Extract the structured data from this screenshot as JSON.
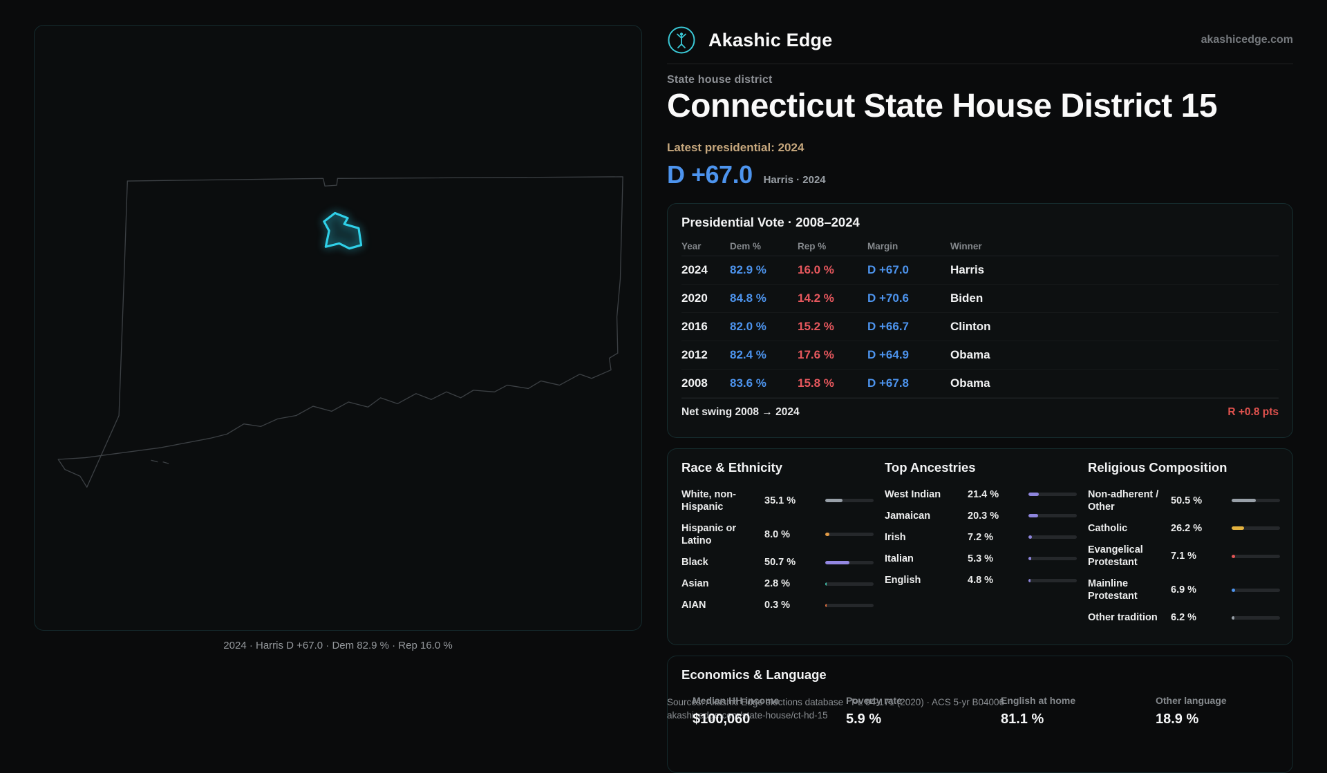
{
  "meta": {
    "brand": "Akashic Edge",
    "domain": "akashicedge.com"
  },
  "map": {
    "caption": "2024 · Harris D +67.0 · Dem 82.9 % · Rep 16.0 %",
    "district_color": "#2fd0e8"
  },
  "header": {
    "category": "State house district",
    "title": "Connecticut State House District 15",
    "latest_label": "Latest presidential: 2024",
    "headline_margin": "D +67.0",
    "headline_note": "Harris · 2024"
  },
  "presidential": {
    "title": "Presidential Vote · 2008–2024",
    "columns": [
      "Year",
      "Dem %",
      "Rep %",
      "Margin",
      "Winner"
    ],
    "rows": [
      {
        "year": "2024",
        "dem": "82.9 %",
        "rep": "16.0 %",
        "margin": "D +67.0",
        "winner": "Harris"
      },
      {
        "year": "2020",
        "dem": "84.8 %",
        "rep": "14.2 %",
        "margin": "D +70.6",
        "winner": "Biden"
      },
      {
        "year": "2016",
        "dem": "82.0 %",
        "rep": "15.2 %",
        "margin": "D +66.7",
        "winner": "Clinton"
      },
      {
        "year": "2012",
        "dem": "82.4 %",
        "rep": "17.6 %",
        "margin": "D +64.9",
        "winner": "Obama"
      },
      {
        "year": "2008",
        "dem": "83.6 %",
        "rep": "15.8 %",
        "margin": "D +67.8",
        "winner": "Obama"
      }
    ],
    "net_swing_label": "Net swing 2008 → 2024",
    "net_swing_value": "R +0.8 pts"
  },
  "demographics": {
    "race": {
      "title": "Race & Ethnicity",
      "rows": [
        {
          "label": "White, non-Hispanic",
          "value": "35.1 %",
          "pct": 35.1,
          "color": "#98a0a8"
        },
        {
          "label": "Hispanic or Latino",
          "value": "8.0 %",
          "pct": 8.0,
          "color": "#e29b45"
        },
        {
          "label": "Black",
          "value": "50.7 %",
          "pct": 50.7,
          "color": "#9387e2"
        },
        {
          "label": "Asian",
          "value": "2.8 %",
          "pct": 2.8,
          "color": "#41c4ae"
        },
        {
          "label": "AIAN",
          "value": "0.3 %",
          "pct": 0.3,
          "color": "#e2703f"
        }
      ]
    },
    "ancestries": {
      "title": "Top Ancestries",
      "rows": [
        {
          "label": "West Indian",
          "value": "21.4 %",
          "pct": 21.4,
          "color": "#8d85dd"
        },
        {
          "label": "Jamaican",
          "value": "20.3 %",
          "pct": 20.3,
          "color": "#8d85dd"
        },
        {
          "label": "Irish",
          "value": "7.2 %",
          "pct": 7.2,
          "color": "#8d85dd"
        },
        {
          "label": "Italian",
          "value": "5.3 %",
          "pct": 5.3,
          "color": "#8d85dd"
        },
        {
          "label": "English",
          "value": "4.8 %",
          "pct": 4.8,
          "color": "#8d85dd"
        }
      ]
    },
    "religion": {
      "title": "Religious Composition",
      "rows": [
        {
          "label": "Non-adherent / Other",
          "value": "50.5 %",
          "pct": 50.5,
          "color": "#98a0a8"
        },
        {
          "label": "Catholic",
          "value": "26.2 %",
          "pct": 26.2,
          "color": "#e3b23f"
        },
        {
          "label": "Evangelical Protestant",
          "value": "7.1 %",
          "pct": 7.1,
          "color": "#e25555"
        },
        {
          "label": "Mainline Protestant",
          "value": "6.9 %",
          "pct": 6.9,
          "color": "#4d94ee"
        },
        {
          "label": "Other tradition",
          "value": "6.2 %",
          "pct": 6.2,
          "color": "#98a0a8"
        }
      ]
    }
  },
  "economics": {
    "title": "Economics & Language",
    "stats": [
      {
        "label": "Median HH income",
        "value": "$100,060"
      },
      {
        "label": "Poverty rate",
        "value": "5.9 %"
      },
      {
        "label": "English at home",
        "value": "81.1 %"
      },
      {
        "label": "Other language",
        "value": "18.9 %"
      }
    ]
  },
  "sources": {
    "line1": "Sources: Akashic Edge elections database · PL 94-171 (2020) · ACS 5-yr B04006",
    "line2": "akashicedge.com/state-house/ct-hd-15"
  },
  "colors": {
    "dem": "#4d94ee",
    "rep": "#e8585e",
    "accent": "#2fd0e8",
    "gold": "#c7a87e"
  }
}
